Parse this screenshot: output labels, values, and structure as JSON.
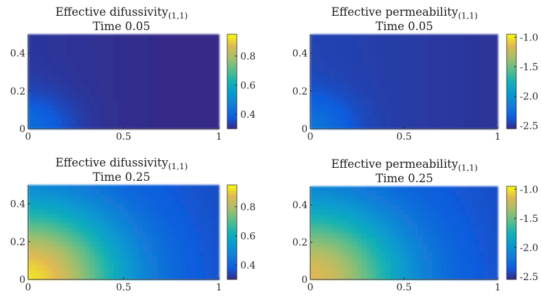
{
  "chart_data": [
    {
      "type": "heatmap",
      "title_main": "Effective difussivity",
      "title_sub": "(1,1)",
      "title_line2": "Time 0.05",
      "xlabel": "",
      "ylabel": "",
      "xlim": [
        0,
        1
      ],
      "ylim": [
        0,
        0.5
      ],
      "xticks": [
        "0",
        "0.5",
        "1"
      ],
      "yticks": [
        "0",
        "0.2",
        "0.4"
      ],
      "clim": [
        0.3,
        0.95
      ],
      "cbar_ticks": [
        "0.4",
        "0.6",
        "0.8"
      ],
      "field": {
        "source": [
          0,
          0
        ],
        "peak": 0.42,
        "base": 0.32,
        "radius": 0.22
      }
    },
    {
      "type": "heatmap",
      "title_main": "Effective permeability",
      "title_sub": "(1,1)",
      "title_line2": "Time 0.05",
      "xlabel": "",
      "ylabel": "",
      "xlim": [
        0,
        1
      ],
      "ylim": [
        0,
        0.5
      ],
      "xticks": [
        "0",
        "0.5",
        "1"
      ],
      "yticks": [
        "0",
        "0.2",
        "0.4"
      ],
      "clim": [
        -2.55,
        -0.95
      ],
      "cbar_ticks": [
        "-1.0",
        "-1.5",
        "-2.0",
        "-2.5"
      ],
      "field": {
        "source": [
          0,
          0
        ],
        "peak": -2.2,
        "base": -2.45,
        "radius": 0.22
      }
    },
    {
      "type": "heatmap",
      "title_main": "Effective difussivity",
      "title_sub": "(1,1)",
      "title_line2": "Time 0.25",
      "xlabel": "",
      "ylabel": "",
      "xlim": [
        0,
        1
      ],
      "ylim": [
        0,
        0.5
      ],
      "xticks": [
        "0",
        "0.5",
        "1"
      ],
      "yticks": [
        "0",
        "0.2",
        "0.4"
      ],
      "clim": [
        0.3,
        0.95
      ],
      "cbar_ticks": [
        "0.4",
        "0.6",
        "0.8"
      ],
      "field": {
        "source": [
          0,
          0
        ],
        "peak": 0.92,
        "base": 0.38,
        "radius": 0.5
      }
    },
    {
      "type": "heatmap",
      "title_main": "Effective permeability",
      "title_sub": "(1,1)",
      "title_line2": "Time 0.25",
      "xlabel": "",
      "ylabel": "",
      "xlim": [
        0,
        1
      ],
      "ylim": [
        0,
        0.5
      ],
      "xticks": [
        "0",
        "0.5",
        "1"
      ],
      "yticks": [
        "0",
        "0.2",
        "0.4"
      ],
      "clim": [
        -2.55,
        -0.95
      ],
      "cbar_ticks": [
        "-1.0",
        "-1.5",
        "-2.0",
        "-2.5"
      ],
      "field": {
        "source": [
          0,
          0
        ],
        "peak": -1.15,
        "base": -2.35,
        "radius": 0.5
      }
    }
  ],
  "colormap": "parula"
}
